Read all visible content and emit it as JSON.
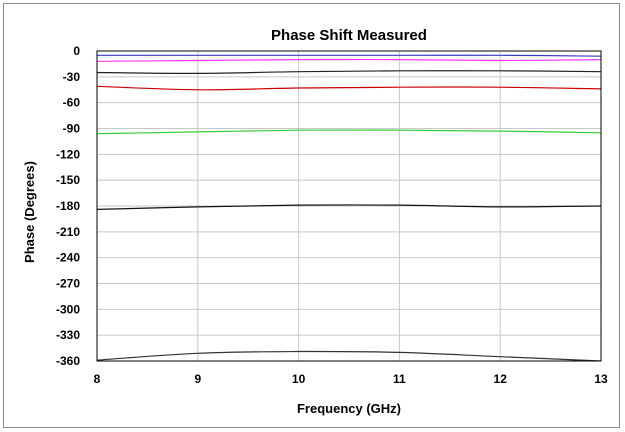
{
  "chart_data": {
    "type": "line",
    "title": "Phase Shift  Measured",
    "xlabel": "Frequency (GHz)",
    "ylabel": "Phase (Degrees)",
    "xlim": [
      8,
      13
    ],
    "ylim": [
      -360,
      0
    ],
    "x_ticks": [
      "8",
      "9",
      "10",
      "11",
      "12",
      "13"
    ],
    "y_ticks": [
      "0",
      "-30",
      "-60",
      "-90",
      "-120",
      "-150",
      "-180",
      "-210",
      "-240",
      "-270",
      "-300",
      "-330",
      "-360"
    ],
    "grid": true,
    "x": [
      8,
      9,
      10,
      11,
      12,
      13
    ],
    "series": [
      {
        "color": "#3a3ac8",
        "values": [
          -5,
          -5,
          -5,
          -5,
          -5,
          -6
        ]
      },
      {
        "color": "#ff33ff",
        "values": [
          -12,
          -11,
          -10,
          -10,
          -11,
          -10
        ]
      },
      {
        "color": "#222222",
        "values": [
          -25,
          -26,
          -24,
          -23,
          -23,
          -24
        ]
      },
      {
        "color": "#cc0000",
        "values": [
          -41,
          -45,
          -43,
          -42,
          -42,
          -44
        ]
      },
      {
        "color": "#33cc33",
        "values": [
          -96,
          -94,
          -92,
          -92,
          -93,
          -95
        ]
      },
      {
        "color": "#111111",
        "values": [
          -184,
          -181,
          -179,
          -179,
          -181,
          -180
        ]
      },
      {
        "color": "#333333",
        "values": [
          -359,
          -351,
          -349,
          -350,
          -355,
          -360
        ]
      }
    ]
  }
}
